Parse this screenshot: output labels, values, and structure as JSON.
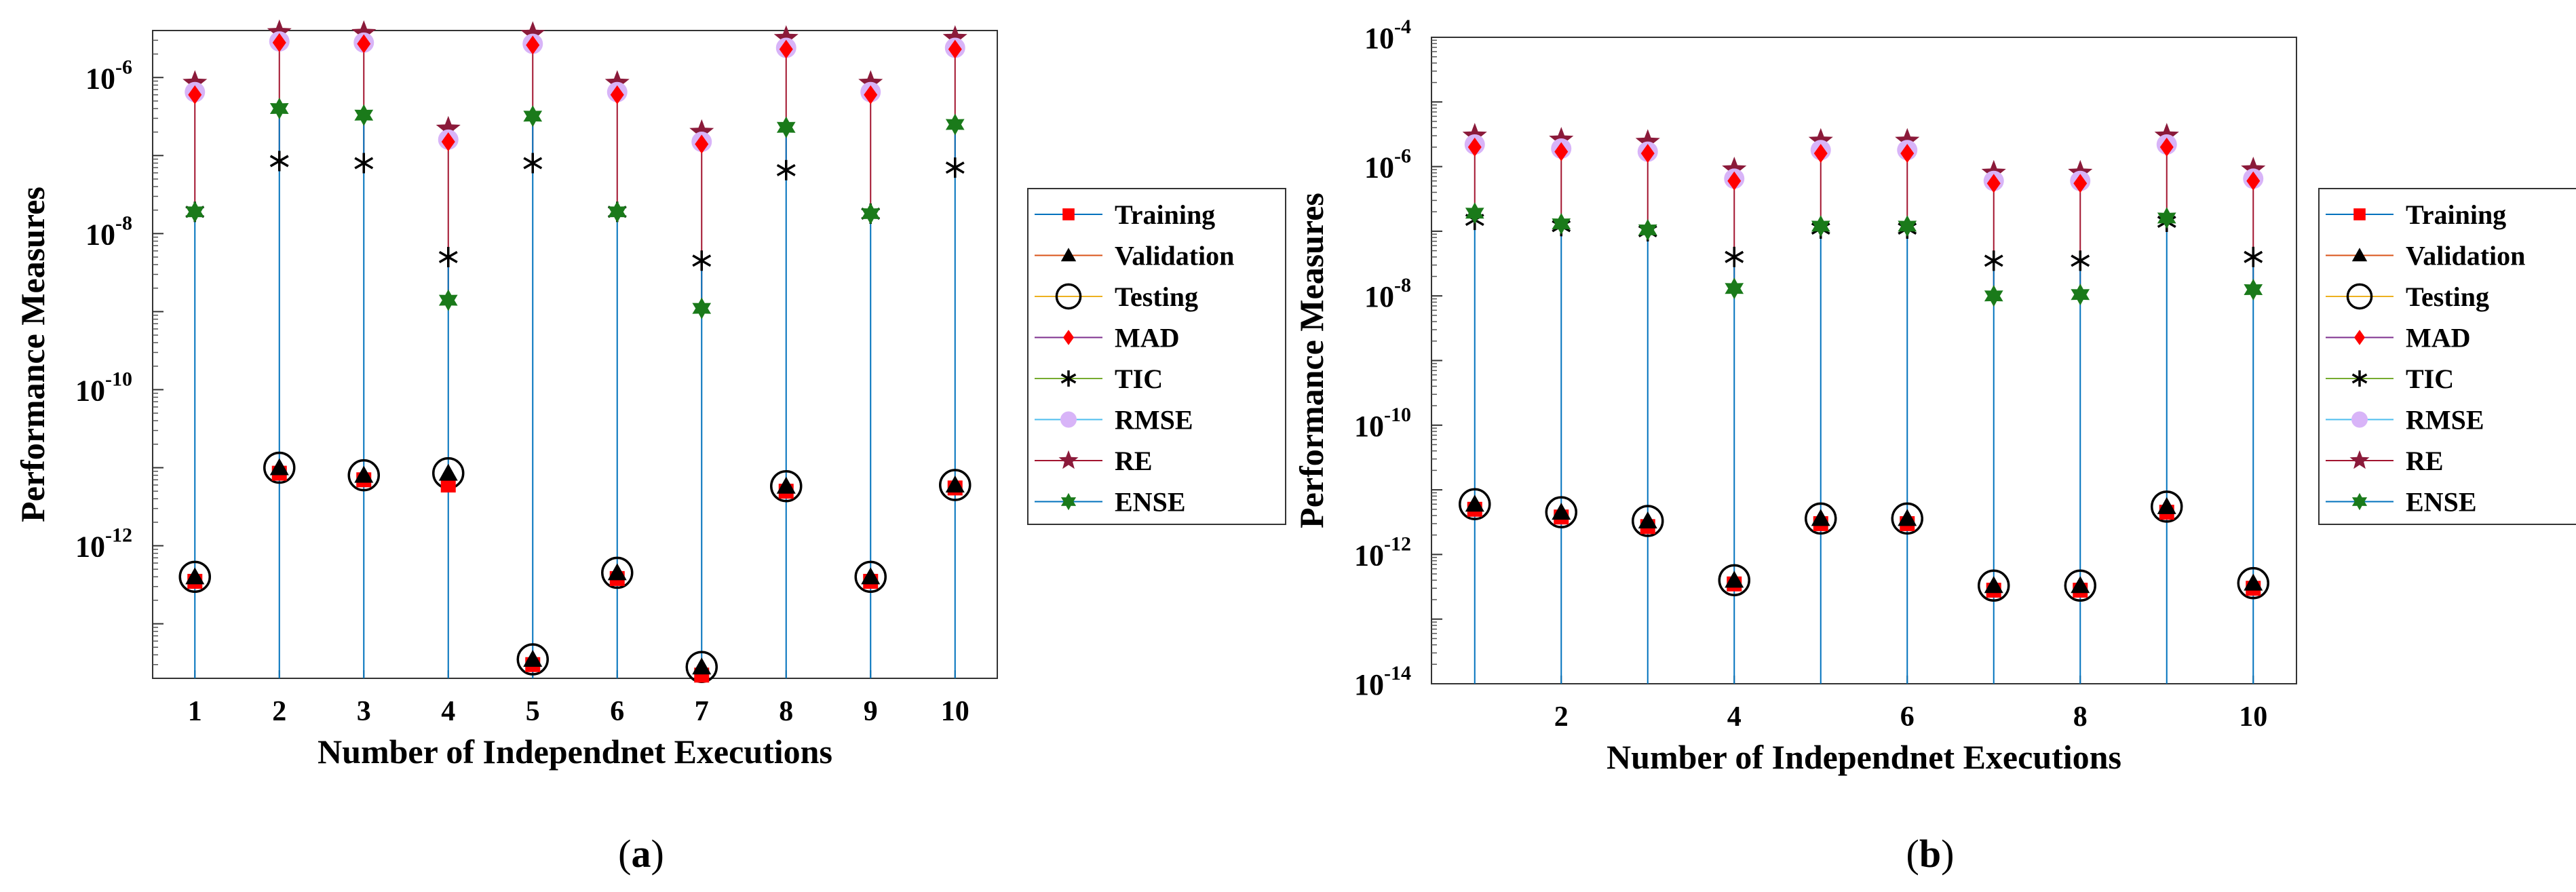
{
  "colors": {
    "training": "#ff0000",
    "validation": "#000000",
    "testing": "#000000",
    "mad": "#ff0000",
    "tic": "#000000",
    "rmse": "#d8b4f8",
    "re": "#8b1a3a",
    "ense": "#1a7a1a",
    "stem_blue": "#0072bd",
    "stem_red": "#a2142f"
  },
  "legend": [
    "Training",
    "Validation",
    "Testing",
    "MAD",
    "TIC",
    "RMSE",
    "RE",
    "ENSE"
  ],
  "chart_data": [
    {
      "type": "scatter",
      "caption_label": "a",
      "xlabel": "Number of Independnet Executions",
      "ylabel": "Performance Measures",
      "yscale": "log",
      "xlim": [
        0.5,
        10.5
      ],
      "ylim": [
        2e-14,
        4e-06
      ],
      "x": [
        1,
        2,
        3,
        4,
        5,
        6,
        7,
        8,
        9,
        10
      ],
      "xticks": [
        "1",
        "2",
        "3",
        "4",
        "5",
        "6",
        "7",
        "8",
        "9",
        "10"
      ],
      "yticks": [
        {
          "base": "10",
          "exp": "-12",
          "value": 1e-12
        },
        {
          "base": "10",
          "exp": "-10",
          "value": 1e-10
        },
        {
          "base": "10",
          "exp": "-8",
          "value": 1e-08
        },
        {
          "base": "10",
          "exp": "-6",
          "value": 1e-06
        }
      ],
      "series": [
        {
          "name": "Training",
          "values": [
            3.5e-13,
            8.5e-12,
            7e-12,
            6e-12,
            3e-14,
            3.8e-13,
            2.2e-14,
            5e-12,
            3.5e-13,
            5.5e-12
          ]
        },
        {
          "name": "Validation",
          "values": [
            4e-13,
            1e-11,
            8e-12,
            8.5e-12,
            3.5e-14,
            4.5e-13,
            2.8e-14,
            5.8e-12,
            4e-13,
            6e-12
          ]
        },
        {
          "name": "Testing",
          "values": [
            4e-13,
            1e-11,
            8e-12,
            8.5e-12,
            3.5e-14,
            4.5e-13,
            2.8e-14,
            5.8e-12,
            4e-13,
            6e-12
          ]
        },
        {
          "name": "MAD",
          "values": [
            6e-07,
            2.8e-06,
            2.7e-06,
            1.5e-07,
            2.6e-06,
            6e-07,
            1.4e-07,
            2.3e-06,
            6e-07,
            2.3e-06
          ]
        },
        {
          "name": "TIC",
          "values": [
            1.9e-08,
            8.5e-08,
            8e-08,
            5e-09,
            8e-08,
            1.9e-08,
            4.5e-09,
            6.5e-08,
            1.8e-08,
            7e-08
          ]
        },
        {
          "name": "RMSE",
          "values": [
            6.5e-07,
            2.9e-06,
            2.8e-06,
            1.6e-07,
            2.7e-06,
            6.5e-07,
            1.5e-07,
            2.4e-06,
            6.5e-07,
            2.4e-06
          ]
        },
        {
          "name": "RE",
          "values": [
            8.5e-07,
            3.8e-06,
            3.7e-06,
            2.2e-07,
            3.6e-06,
            8.5e-07,
            2e-07,
            3.2e-06,
            8.5e-07,
            3.2e-06
          ]
        },
        {
          "name": "ENSE",
          "values": [
            1.9e-08,
            4e-07,
            3.3e-07,
            1.4e-09,
            3.2e-07,
            1.9e-08,
            1.1e-09,
            2.3e-07,
            1.8e-08,
            2.5e-07
          ]
        }
      ]
    },
    {
      "type": "scatter",
      "caption_label": "b",
      "xlabel": "Number of Independnet Executions",
      "ylabel": "Performance Measures",
      "yscale": "log",
      "xlim": [
        0.5,
        10.5
      ],
      "ylim": [
        1e-14,
        0.0001
      ],
      "x": [
        1,
        2,
        3,
        4,
        5,
        6,
        7,
        8,
        9,
        10
      ],
      "xticks": [
        "2",
        "4",
        "6",
        "8",
        "10"
      ],
      "yticks": [
        {
          "base": "10",
          "exp": "-14",
          "value": 1e-14
        },
        {
          "base": "10",
          "exp": "-12",
          "value": 1e-12
        },
        {
          "base": "10",
          "exp": "-10",
          "value": 1e-10
        },
        {
          "base": "10",
          "exp": "-8",
          "value": 1e-08
        },
        {
          "base": "10",
          "exp": "-6",
          "value": 1e-06
        },
        {
          "base": "10",
          "exp": "-4",
          "value": 0.0001
        }
      ],
      "series": [
        {
          "name": "Training",
          "values": [
            5e-12,
            3.8e-12,
            2.7e-12,
            3.5e-13,
            3e-12,
            3e-12,
            2.8e-13,
            2.8e-13,
            4.5e-12,
            3e-13
          ]
        },
        {
          "name": "Validation",
          "values": [
            6e-12,
            4.5e-12,
            3.3e-12,
            4e-13,
            3.6e-12,
            3.6e-12,
            3.3e-13,
            3.3e-13,
            5.5e-12,
            3.6e-13
          ]
        },
        {
          "name": "Testing",
          "values": [
            6e-12,
            4.5e-12,
            3.3e-12,
            4e-13,
            3.6e-12,
            3.6e-12,
            3.3e-13,
            3.3e-13,
            5.5e-12,
            3.6e-13
          ]
        },
        {
          "name": "MAD",
          "values": [
            2e-06,
            1.7e-06,
            1.6e-06,
            6e-07,
            1.6e-06,
            1.6e-06,
            5.5e-07,
            5.5e-07,
            2e-06,
            6e-07
          ]
        },
        {
          "name": "TIC",
          "values": [
            1.5e-07,
            1.2e-07,
            1e-07,
            4e-08,
            1.1e-07,
            1.1e-07,
            3.5e-08,
            3.5e-08,
            1.4e-07,
            4e-08
          ]
        },
        {
          "name": "RMSE",
          "values": [
            2.2e-06,
            1.9e-06,
            1.7e-06,
            6.5e-07,
            1.8e-06,
            1.8e-06,
            6e-07,
            6e-07,
            2.2e-06,
            6.5e-07
          ]
        },
        {
          "name": "RE",
          "values": [
            3e-06,
            2.6e-06,
            2.4e-06,
            9e-07,
            2.5e-06,
            2.5e-06,
            8e-07,
            8e-07,
            3e-06,
            9e-07
          ]
        },
        {
          "name": "ENSE",
          "values": [
            1.9e-07,
            1.3e-07,
            1.05e-07,
            1.3e-08,
            1.2e-07,
            1.2e-07,
            1e-08,
            1.05e-08,
            1.6e-07,
            1.25e-08
          ]
        }
      ]
    }
  ]
}
